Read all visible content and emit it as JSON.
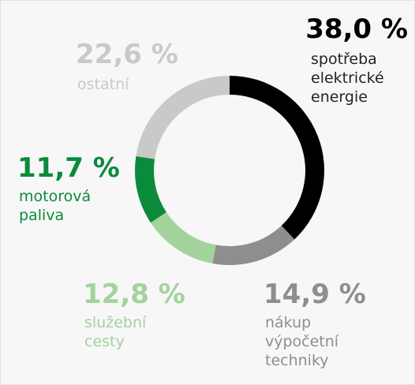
{
  "chart_data": {
    "type": "pie",
    "donut": true,
    "categories": [
      "spotřeba elektrické energie",
      "nákup výpočetní techniky",
      "služební cesty",
      "motorová paliva",
      "ostatní"
    ],
    "values": [
      38.0,
      14.9,
      12.8,
      11.7,
      22.6
    ],
    "value_labels": [
      "38,0 %",
      "14,9 %",
      "12,8 %",
      "11,7 %",
      "22,6 %"
    ],
    "colors": [
      "#000000",
      "#8e8e8e",
      "#a3d39d",
      "#0b8a3c",
      "#c9c9c9"
    ]
  }
}
